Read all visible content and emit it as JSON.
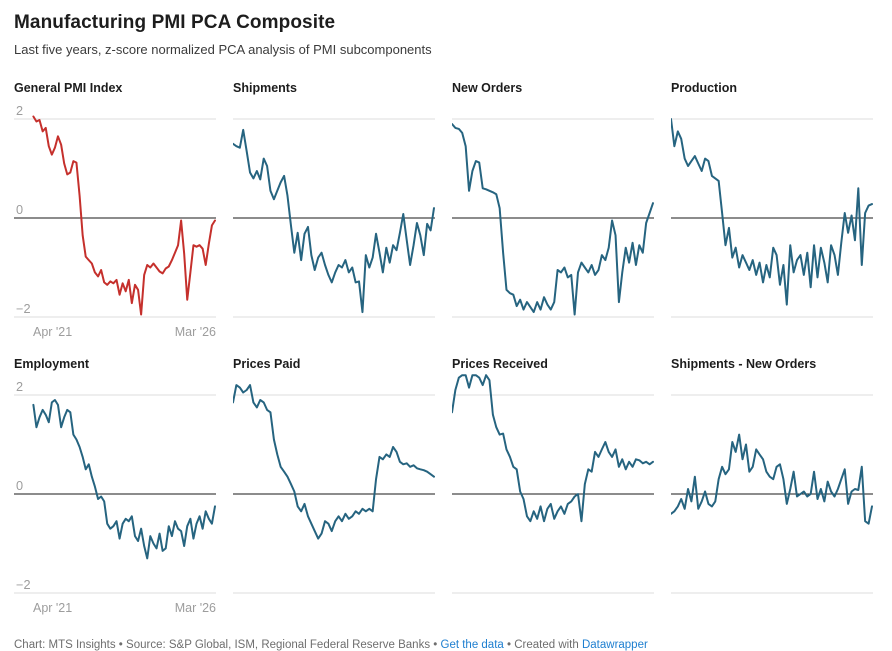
{
  "header": {
    "title": "Manufacturing PMI PCA Composite",
    "subtitle": "Last five years, z-score normalized PCA analysis of PMI subcomponents"
  },
  "axis": {
    "x_start": "Apr '21",
    "x_end": "Mar '26",
    "y_ticks": [
      {
        "label": "2",
        "value": 2
      },
      {
        "label": "0",
        "value": 0
      },
      {
        "label": "−2",
        "value": -2
      }
    ],
    "ylim": [
      -2,
      2
    ],
    "gridlines": [
      2,
      0,
      -2
    ]
  },
  "colors": {
    "red": "#c5302c",
    "teal": "#266480",
    "grid": "#dedede",
    "zero_line": "#1a1a1a",
    "tick_label": "#9d9d9d",
    "link": "#1e7fd0"
  },
  "chart_data": [
    {
      "type": "line",
      "title": "General PMI Index",
      "color": "red",
      "show_y_labels": true,
      "show_x_labels": true,
      "x_range": [
        "Apr '21",
        "Mar '26"
      ],
      "ylim": [
        -2,
        2
      ],
      "values": [
        2.05,
        1.95,
        1.98,
        1.75,
        1.82,
        1.45,
        1.28,
        1.42,
        1.65,
        1.48,
        1.1,
        0.88,
        0.92,
        1.15,
        1.12,
        0.45,
        -0.35,
        -0.78,
        -0.85,
        -0.92,
        -1.1,
        -1.18,
        -1.05,
        -1.3,
        -1.35,
        -1.28,
        -1.32,
        -1.25,
        -1.55,
        -1.32,
        -1.48,
        -1.25,
        -1.72,
        -1.35,
        -1.45,
        -1.95,
        -1.15,
        -0.95,
        -1.0,
        -0.92,
        -1.0,
        -1.08,
        -1.12,
        -1.02,
        -0.98,
        -0.85,
        -0.7,
        -0.55,
        -0.05,
        -0.72,
        -1.65,
        -1.1,
        -0.55,
        -0.58,
        -0.55,
        -0.62,
        -0.95,
        -0.52,
        -0.15,
        -0.05
      ]
    },
    {
      "type": "line",
      "title": "Shipments",
      "color": "teal",
      "show_y_labels": false,
      "show_x_labels": false,
      "x_range": [
        "Apr '21",
        "Mar '26"
      ],
      "ylim": [
        -2,
        2
      ],
      "values": [
        1.5,
        1.45,
        1.42,
        1.78,
        1.35,
        0.92,
        0.8,
        0.95,
        0.78,
        1.2,
        1.05,
        0.55,
        0.38,
        0.55,
        0.72,
        0.85,
        0.45,
        -0.15,
        -0.7,
        -0.3,
        -0.85,
        -0.32,
        -0.18,
        -0.75,
        -1.05,
        -0.8,
        -0.7,
        -0.95,
        -1.15,
        -1.3,
        -1.1,
        -0.95,
        -1.0,
        -0.85,
        -1.1,
        -1.0,
        -1.3,
        -1.28,
        -1.9,
        -0.75,
        -1.0,
        -0.8,
        -0.32,
        -0.7,
        -1.1,
        -0.6,
        -0.9,
        -0.55,
        -0.65,
        -0.3,
        0.08,
        -0.45,
        -0.95,
        -0.55,
        -0.1,
        -0.35,
        -0.75,
        -0.12,
        -0.25,
        0.2
      ]
    },
    {
      "type": "line",
      "title": "New Orders",
      "color": "teal",
      "show_y_labels": false,
      "show_x_labels": false,
      "x_range": [
        "Apr '21",
        "Mar '26"
      ],
      "ylim": [
        -2,
        2
      ],
      "values": [
        1.9,
        1.82,
        1.8,
        1.72,
        1.45,
        0.55,
        0.95,
        1.15,
        1.12,
        0.6,
        0.58,
        0.55,
        0.52,
        0.48,
        0.2,
        -0.7,
        -1.45,
        -1.52,
        -1.55,
        -1.78,
        -1.65,
        -1.85,
        -1.7,
        -1.8,
        -1.9,
        -1.7,
        -1.85,
        -1.6,
        -1.75,
        -1.85,
        -1.7,
        -1.05,
        -1.1,
        -1.0,
        -1.2,
        -1.15,
        -1.95,
        -1.1,
        -0.9,
        -1.0,
        -1.1,
        -0.95,
        -1.15,
        -1.05,
        -0.75,
        -0.85,
        -0.6,
        -0.05,
        -0.35,
        -1.7,
        -1.1,
        -0.6,
        -0.9,
        -0.5,
        -0.95,
        -0.55,
        -0.7,
        -0.1,
        0.1,
        0.3
      ]
    },
    {
      "type": "line",
      "title": "Production",
      "color": "teal",
      "show_y_labels": false,
      "show_x_labels": false,
      "x_range": [
        "Apr '21",
        "Mar '26"
      ],
      "ylim": [
        -2,
        2
      ],
      "values": [
        2.0,
        1.45,
        1.75,
        1.6,
        1.2,
        1.05,
        1.15,
        1.25,
        1.1,
        0.95,
        1.2,
        1.15,
        0.85,
        0.8,
        0.75,
        0.1,
        -0.55,
        -0.2,
        -0.8,
        -0.6,
        -1.0,
        -0.75,
        -0.9,
        -1.05,
        -0.85,
        -1.15,
        -0.9,
        -1.3,
        -0.95,
        -1.2,
        -0.6,
        -0.75,
        -1.35,
        -0.95,
        -1.75,
        -0.55,
        -1.1,
        -0.85,
        -0.75,
        -1.15,
        -0.7,
        -1.4,
        -0.55,
        -1.2,
        -0.6,
        -0.9,
        -1.3,
        -0.55,
        -0.75,
        -1.15,
        -0.5,
        0.1,
        -0.3,
        0.05,
        -0.45,
        0.6,
        -0.95,
        0.1,
        0.25,
        0.28
      ]
    },
    {
      "type": "line",
      "title": "Employment",
      "color": "teal",
      "show_y_labels": true,
      "show_x_labels": true,
      "x_range": [
        "Apr '21",
        "Mar '26"
      ],
      "ylim": [
        -2,
        2
      ],
      "values": [
        1.8,
        1.35,
        1.55,
        1.7,
        1.6,
        1.45,
        1.85,
        1.9,
        1.8,
        1.35,
        1.55,
        1.7,
        1.65,
        1.2,
        1.1,
        0.95,
        0.75,
        0.5,
        0.6,
        0.35,
        0.15,
        -0.1,
        -0.05,
        -0.15,
        -0.6,
        -0.7,
        -0.65,
        -0.55,
        -0.9,
        -0.6,
        -0.5,
        -0.55,
        -0.45,
        -0.85,
        -0.95,
        -0.7,
        -1.05,
        -1.3,
        -0.85,
        -1.0,
        -1.1,
        -0.8,
        -1.15,
        -1.1,
        -0.65,
        -0.85,
        -0.55,
        -0.7,
        -0.75,
        -1.05,
        -0.65,
        -0.5,
        -0.9,
        -0.6,
        -0.45,
        -0.7,
        -0.35,
        -0.5,
        -0.6,
        -0.25
      ]
    },
    {
      "type": "line",
      "title": "Prices Paid",
      "color": "teal",
      "show_y_labels": false,
      "show_x_labels": false,
      "x_range": [
        "Apr '21",
        "Mar '26"
      ],
      "ylim": [
        -2,
        2
      ],
      "values": [
        1.85,
        2.2,
        2.15,
        2.05,
        2.1,
        2.2,
        1.85,
        1.75,
        1.9,
        1.85,
        1.7,
        1.65,
        1.1,
        0.8,
        0.55,
        0.45,
        0.35,
        0.2,
        0.05,
        -0.25,
        -0.35,
        -0.2,
        -0.45,
        -0.6,
        -0.75,
        -0.9,
        -0.8,
        -0.55,
        -0.6,
        -0.75,
        -0.55,
        -0.45,
        -0.55,
        -0.4,
        -0.5,
        -0.45,
        -0.35,
        -0.4,
        -0.3,
        -0.35,
        -0.3,
        -0.35,
        0.3,
        0.75,
        0.7,
        0.8,
        0.75,
        0.95,
        0.85,
        0.65,
        0.6,
        0.62,
        0.55,
        0.58,
        0.52,
        0.5,
        0.48,
        0.45,
        0.4,
        0.35
      ]
    },
    {
      "type": "line",
      "title": "Prices Received",
      "color": "teal",
      "show_y_labels": false,
      "show_x_labels": false,
      "x_range": [
        "Apr '21",
        "Mar '26"
      ],
      "ylim": [
        -2,
        2
      ],
      "values": [
        1.65,
        2.1,
        2.35,
        2.4,
        2.4,
        2.15,
        2.4,
        2.4,
        2.35,
        2.2,
        2.4,
        2.3,
        1.6,
        1.35,
        1.2,
        1.22,
        0.9,
        0.75,
        0.55,
        0.5,
        0.05,
        -0.1,
        -0.45,
        -0.55,
        -0.35,
        -0.5,
        -0.25,
        -0.55,
        -0.3,
        -0.2,
        -0.5,
        -0.35,
        -0.25,
        -0.4,
        -0.2,
        -0.15,
        -0.05,
        0.0,
        -0.55,
        0.2,
        0.5,
        0.45,
        0.85,
        0.75,
        0.9,
        1.05,
        0.85,
        0.75,
        0.9,
        0.55,
        0.7,
        0.5,
        0.65,
        0.55,
        0.7,
        0.68,
        0.62,
        0.65,
        0.6,
        0.65
      ]
    },
    {
      "type": "line",
      "title": "Shipments - New Orders",
      "color": "teal",
      "show_y_labels": false,
      "show_x_labels": false,
      "x_range": [
        "Apr '21",
        "Mar '26"
      ],
      "ylim": [
        -2,
        2
      ],
      "values": [
        -0.4,
        -0.35,
        -0.25,
        -0.1,
        -0.3,
        0.1,
        -0.15,
        0.35,
        -0.3,
        -0.15,
        0.05,
        -0.2,
        -0.25,
        -0.15,
        0.3,
        0.55,
        0.4,
        0.5,
        1.05,
        0.85,
        1.2,
        0.7,
        1.0,
        0.45,
        0.55,
        0.9,
        0.8,
        0.7,
        0.45,
        0.35,
        0.3,
        0.55,
        0.6,
        0.3,
        -0.2,
        0.1,
        0.45,
        -0.05,
        0.0,
        0.05,
        -0.05,
        0.0,
        0.45,
        -0.1,
        0.1,
        -0.15,
        0.25,
        0.05,
        -0.05,
        0.1,
        0.3,
        0.5,
        -0.2,
        0.05,
        0.1,
        0.08,
        0.55,
        -0.55,
        -0.6,
        -0.25
      ]
    }
  ],
  "footer": {
    "part1": "Chart: MTS Insights • Source: S&P Global, ISM, Regional Federal Reserve Banks • ",
    "link_data": "Get the data",
    "part2": " • Created with ",
    "link_dw": "Datawrapper"
  }
}
